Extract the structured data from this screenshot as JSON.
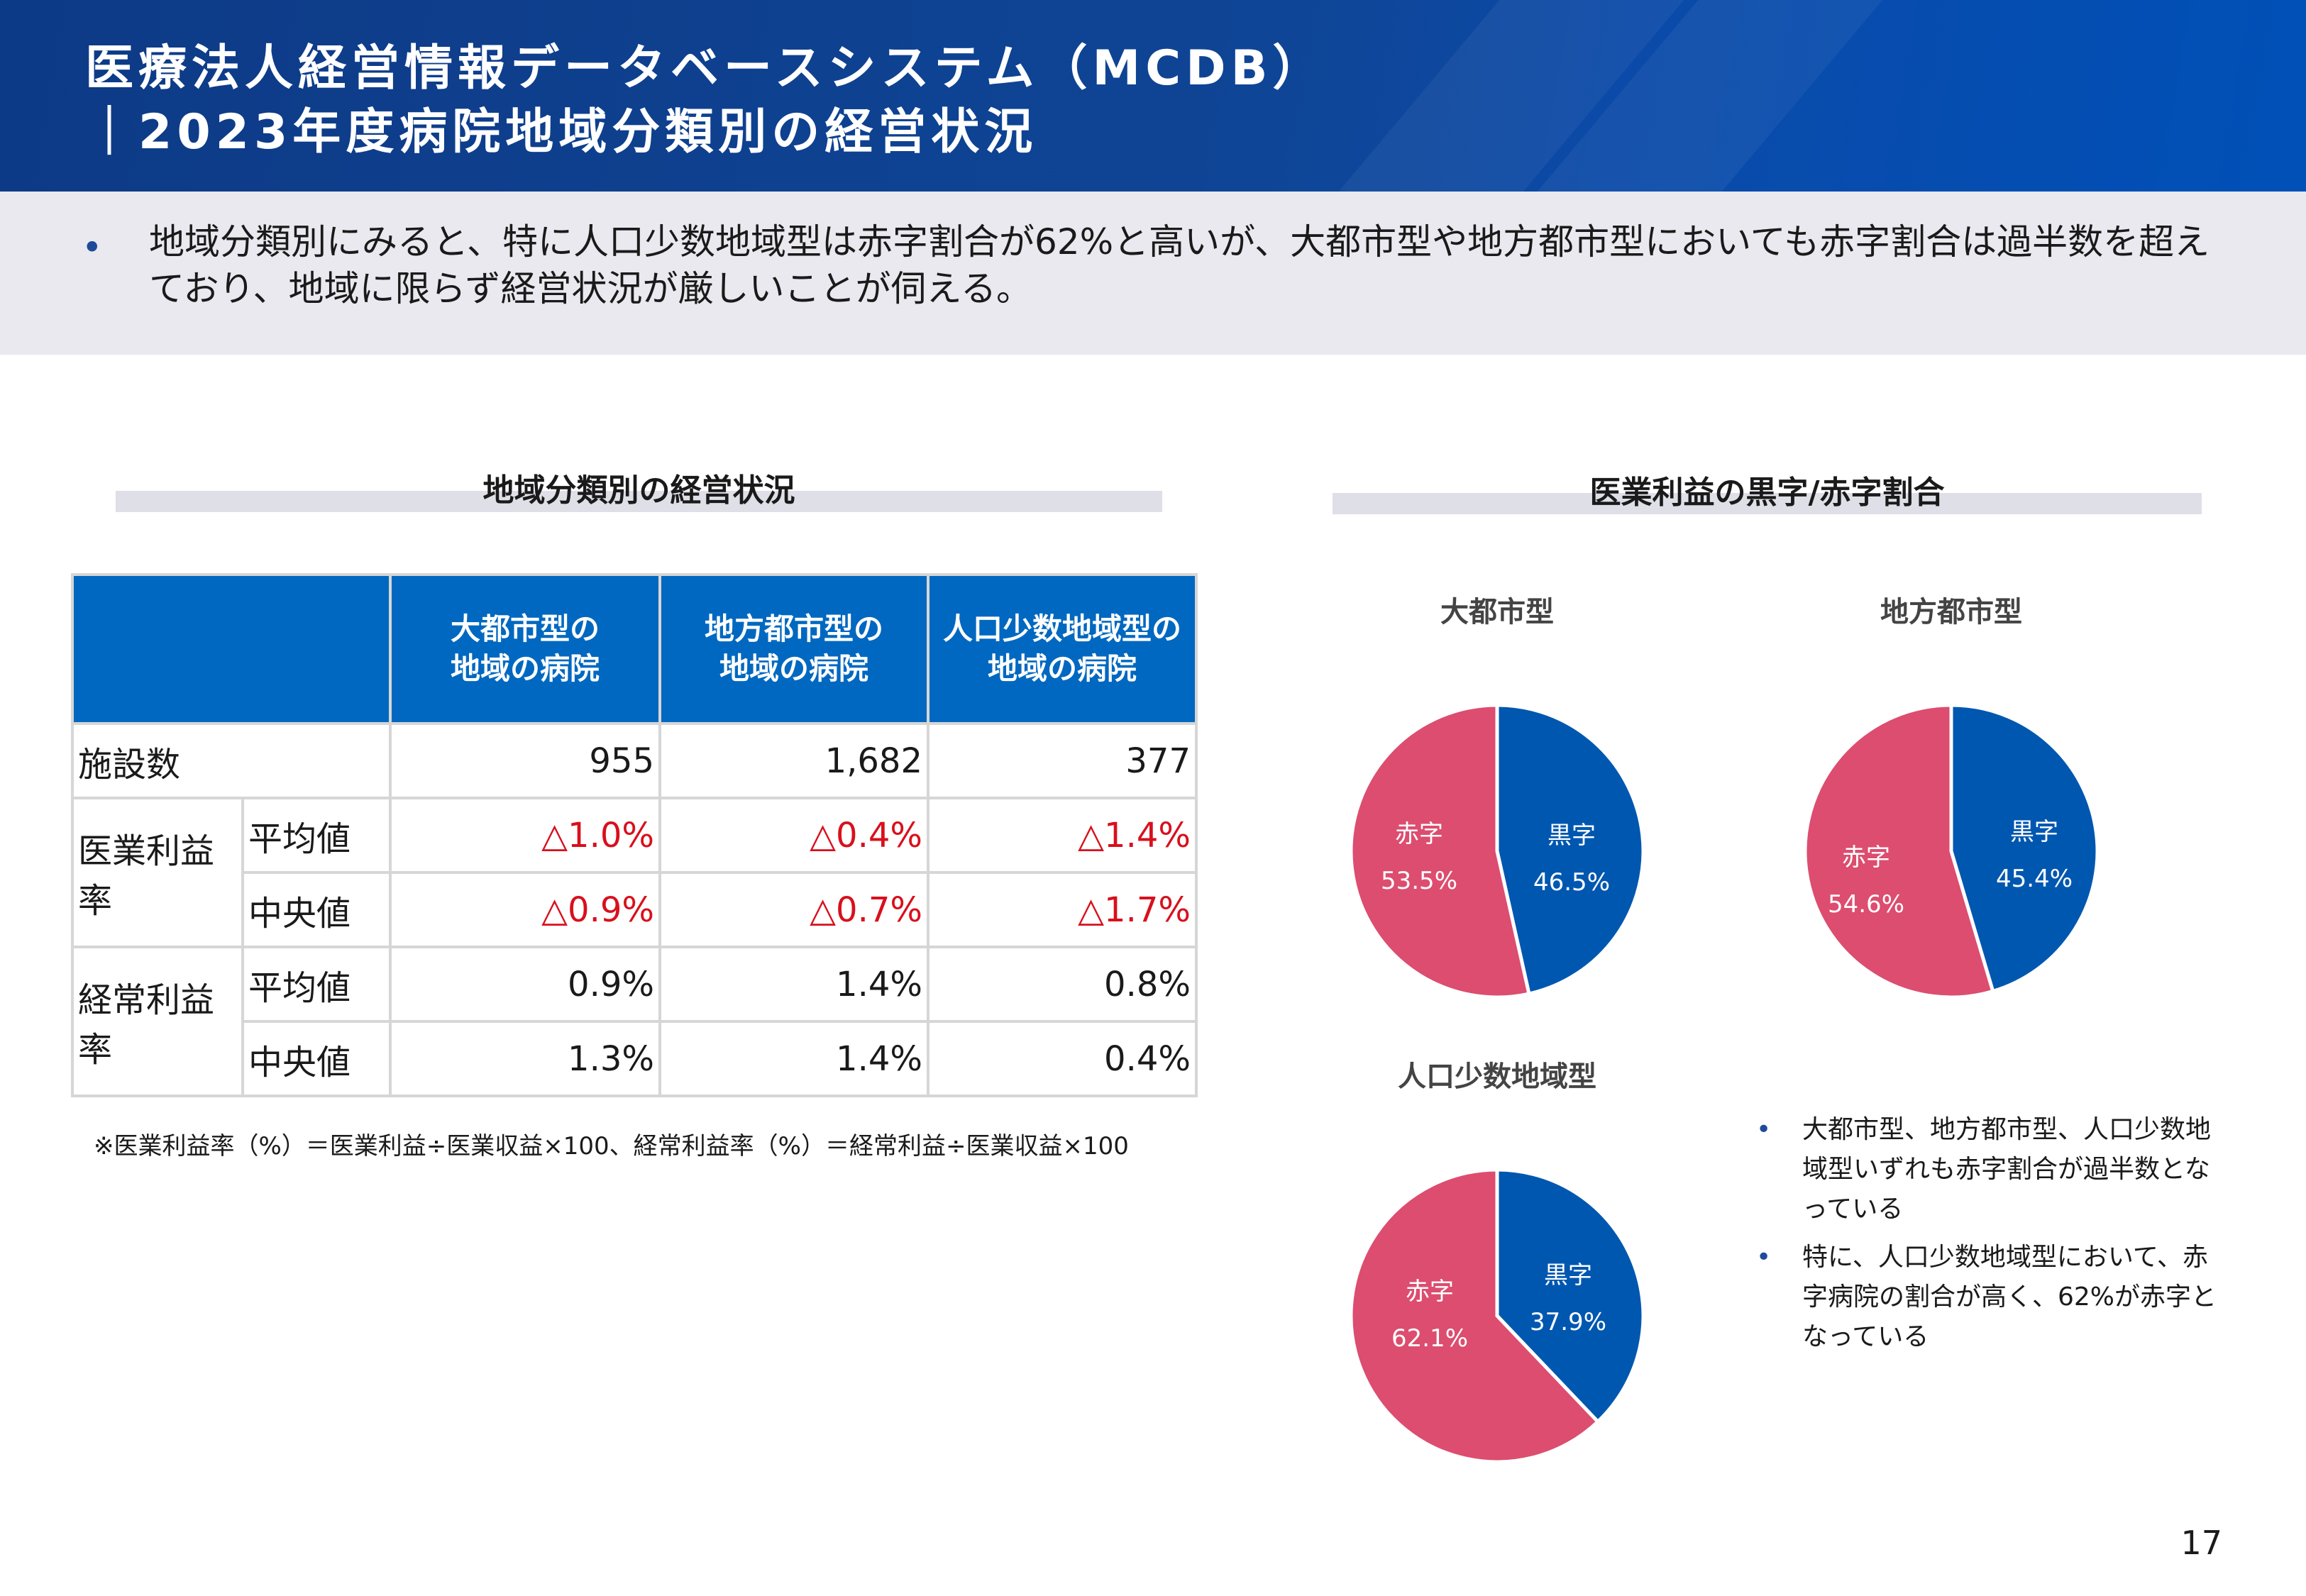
{
  "header": {
    "title_line1": "医療法人経営情報データベースシステム（MCDB）",
    "title_line2": "｜2023年度病院地域分類別の経営状況"
  },
  "summary": {
    "bullet": "•",
    "text": "地域分類別にみると、特に人口少数地域型は赤字割合が62%と高いが、大都市型や地方都市型においても赤字割合は過半数を超えており、地域に限らず経営状況が厳しいことが伺える。"
  },
  "table_section": {
    "title": "地域分類別の経営状況",
    "headers": [
      "大都市型の\n地域の病院",
      "地方都市型の\n地域の病院",
      "人口少数地域型の\n地域の病院"
    ],
    "rows": {
      "facilities": {
        "label": "施設数",
        "values": [
          "955",
          "1,682",
          "377"
        ]
      },
      "op_margin": {
        "label": "医業利益率",
        "avg": {
          "label": "平均値",
          "values": [
            "△1.0%",
            "△0.4%",
            "△1.4%"
          ]
        },
        "median": {
          "label": "中央値",
          "values": [
            "△0.9%",
            "△0.7%",
            "△1.7%"
          ]
        }
      },
      "ord_margin": {
        "label": "経常利益率",
        "avg": {
          "label": "平均値",
          "values": [
            "0.9%",
            "1.4%",
            "0.8%"
          ]
        },
        "median": {
          "label": "中央値",
          "values": [
            "1.3%",
            "1.4%",
            "0.4%"
          ]
        }
      }
    },
    "footnote": "※医業利益率（%）＝医業利益÷医業収益×100、経常利益率（%）＝経常利益÷医業収益×100"
  },
  "pie_section": {
    "title": "医業利益の黒字/赤字割合",
    "notes": [
      "大都市型、地方都市型、人口少数地域型いずれも赤字割合が過半数となっている",
      "特に、人口少数地域型において、赤字病院の割合が高く、62%が赤字となっている"
    ],
    "note_bullet": "•"
  },
  "chart_data": [
    {
      "type": "pie",
      "title": "大都市型",
      "labels": [
        "黒字",
        "赤字"
      ],
      "values": [
        46.5,
        53.5
      ],
      "value_labels": [
        "46.5%",
        "53.5%"
      ],
      "colors": [
        "#0057b0",
        "#dc4d6f"
      ]
    },
    {
      "type": "pie",
      "title": "地方都市型",
      "labels": [
        "黒字",
        "赤字"
      ],
      "values": [
        45.4,
        54.6
      ],
      "value_labels": [
        "45.4%",
        "54.6%"
      ],
      "colors": [
        "#0057b0",
        "#dc4d6f"
      ]
    },
    {
      "type": "pie",
      "title": "人口少数地域型",
      "labels": [
        "黒字",
        "赤字"
      ],
      "values": [
        37.9,
        62.1
      ],
      "value_labels": [
        "37.9%",
        "62.1%"
      ],
      "colors": [
        "#0057b0",
        "#dc4d6f"
      ]
    }
  ],
  "page_number": "17"
}
